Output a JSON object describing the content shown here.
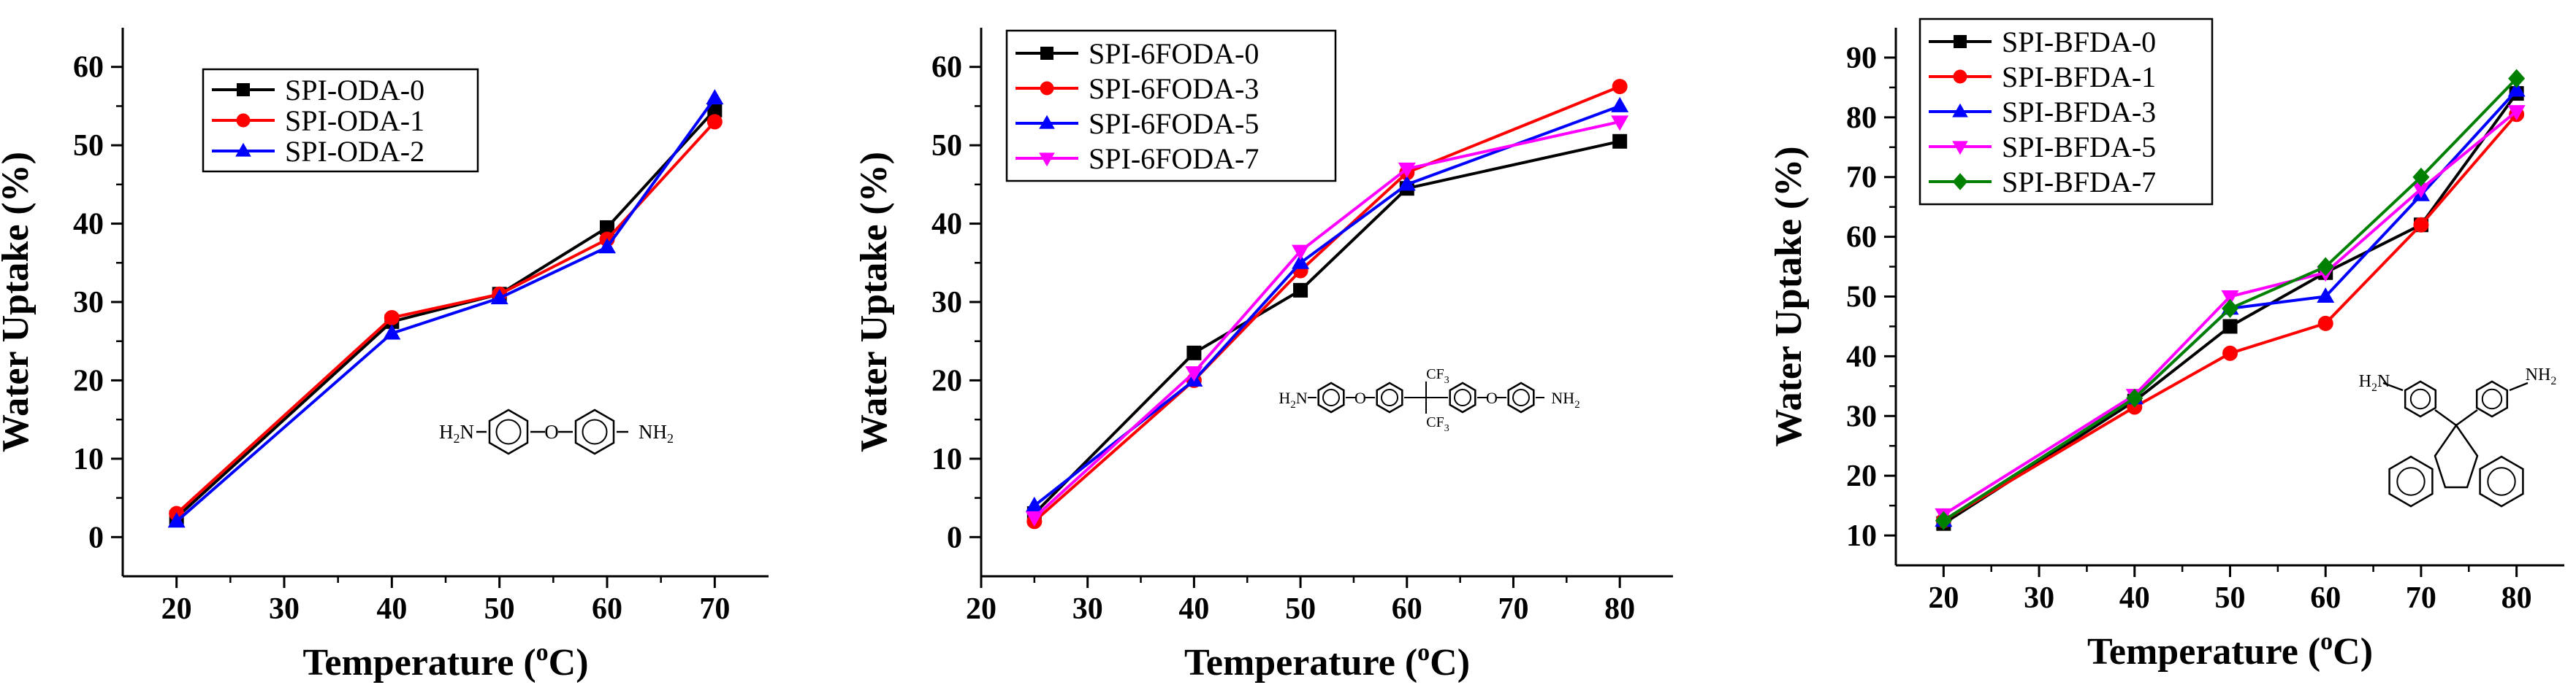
{
  "chart_data": [
    {
      "type": "line",
      "xlabel": "Temperature (oC)",
      "xlabel_main": "Temperature (",
      "xlabel_sup": "o",
      "xlabel_end": "C)",
      "ylabel": "Water Uptake (%)",
      "xlim": [
        15,
        75
      ],
      "ylim": [
        -5,
        65
      ],
      "xticks": [
        20,
        30,
        40,
        50,
        60,
        70
      ],
      "yticks": [
        0,
        10,
        20,
        30,
        40,
        50,
        60
      ],
      "legend_position": "top-left",
      "x": [
        20,
        40,
        50,
        60,
        70
      ],
      "series": [
        {
          "name": "SPI-ODA-0",
          "color": "#000000",
          "marker": "square",
          "values": [
            2.5,
            27.5,
            31.0,
            39.5,
            54.5
          ]
        },
        {
          "name": "SPI-ODA-1",
          "color": "#ff0000",
          "marker": "circle",
          "values": [
            3.0,
            28.0,
            31.0,
            38.0,
            53.0
          ]
        },
        {
          "name": "SPI-ODA-2",
          "color": "#0000ff",
          "marker": "triangle-up",
          "values": [
            2.0,
            26.0,
            30.5,
            37.0,
            56.0
          ]
        }
      ],
      "structure": {
        "left_group": "H2N",
        "bridge": "O",
        "right_group": "NH2"
      }
    },
    {
      "type": "line",
      "xlabel": "Temperature (oC)",
      "xlabel_main": "Temperature (",
      "xlabel_sup": "o",
      "xlabel_end": "C)",
      "ylabel": "Water Uptake (%)",
      "xlim": [
        20,
        85
      ],
      "ylim": [
        -5,
        65
      ],
      "xticks": [
        20,
        30,
        40,
        50,
        60,
        70,
        80
      ],
      "yticks": [
        0,
        10,
        20,
        30,
        40,
        50,
        60
      ],
      "legend_position": "top-left",
      "x": [
        25,
        40,
        50,
        60,
        80
      ],
      "series": [
        {
          "name": "SPI-6FODA-0",
          "color": "#000000",
          "marker": "square",
          "values": [
            3.0,
            23.5,
            31.5,
            44.5,
            50.5
          ]
        },
        {
          "name": "SPI-6FODA-3",
          "color": "#ff0000",
          "marker": "circle",
          "values": [
            2.0,
            20.0,
            34.0,
            46.5,
            57.5
          ]
        },
        {
          "name": "SPI-6FODA-5",
          "color": "#0000ff",
          "marker": "triangle-up",
          "values": [
            4.0,
            20.0,
            35.0,
            45.0,
            55.0
          ]
        },
        {
          "name": "SPI-6FODA-7",
          "color": "#ff00ff",
          "marker": "triangle-down",
          "values": [
            2.5,
            21.0,
            36.5,
            47.0,
            53.0
          ]
        }
      ],
      "structure": {
        "left_group": "H2N",
        "bridge": "O",
        "cf3_top": "CF3",
        "cf3_bottom": "CF3",
        "right_group": "NH2"
      }
    },
    {
      "type": "line",
      "xlabel": "Temperature (oC)",
      "xlabel_main": "Temperature (",
      "xlabel_sup": "o",
      "xlabel_end": "C)",
      "ylabel": "Water Uptake (%)",
      "xlim": [
        15,
        85
      ],
      "ylim": [
        5,
        95
      ],
      "xticks": [
        20,
        30,
        40,
        50,
        60,
        70,
        80
      ],
      "yticks": [
        10,
        20,
        30,
        40,
        50,
        60,
        70,
        80,
        90
      ],
      "legend_position": "top-left",
      "x": [
        20,
        40,
        50,
        60,
        70,
        80
      ],
      "series": [
        {
          "name": "SPI-BFDA-0",
          "color": "#000000",
          "marker": "square",
          "values": [
            12.0,
            32.5,
            45.0,
            54.0,
            62.0,
            84.0
          ]
        },
        {
          "name": "SPI-BFDA-1",
          "color": "#ff0000",
          "marker": "circle",
          "values": [
            12.5,
            31.5,
            40.5,
            45.5,
            62.0,
            80.5
          ]
        },
        {
          "name": "SPI-BFDA-3",
          "color": "#0000ff",
          "marker": "triangle-up",
          "values": [
            12.5,
            33.0,
            48.0,
            50.0,
            67.0,
            84.5
          ]
        },
        {
          "name": "SPI-BFDA-5",
          "color": "#ff00ff",
          "marker": "triangle-down",
          "values": [
            13.5,
            33.5,
            50.0,
            54.0,
            68.0,
            81.0
          ]
        },
        {
          "name": "SPI-BFDA-7",
          "color": "#008000",
          "marker": "diamond",
          "values": [
            12.5,
            33.0,
            48.0,
            55.0,
            70.0,
            86.5
          ]
        }
      ],
      "structure": {
        "left_group": "H2N",
        "right_group": "NH2"
      }
    }
  ]
}
